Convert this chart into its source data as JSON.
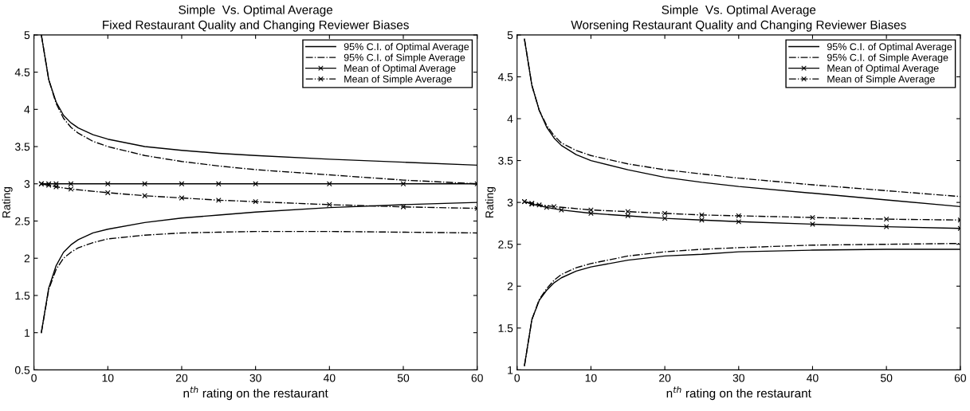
{
  "chart_data": [
    {
      "type": "line",
      "title": "Simple  Vs. Optimal Average",
      "subtitle": "Fixed Restaurant Quality and Changing Reviewer Biases",
      "xlabel": "n$^{th}$ rating on the restaurant",
      "ylabel": "Rating",
      "xlim": [
        0,
        60
      ],
      "xticks": [
        0,
        10,
        20,
        30,
        40,
        50,
        60
      ],
      "ylim": [
        0.5,
        5
      ],
      "yticks": [
        0.5,
        1,
        1.5,
        2,
        2.5,
        3,
        3.5,
        4,
        4.5,
        5
      ],
      "grid": false,
      "legend": "top right",
      "series": [
        {
          "name": "95% C.I. of Optimal Average",
          "color": "#000000",
          "line_style": "solid",
          "marker": "none",
          "x": [
            1,
            2,
            3,
            4,
            5,
            6,
            8,
            10,
            15,
            20,
            25,
            30,
            40,
            50,
            60
          ],
          "values": [
            5.0,
            4.4,
            4.1,
            3.92,
            3.82,
            3.75,
            3.66,
            3.6,
            3.5,
            3.45,
            3.41,
            3.38,
            3.33,
            3.29,
            3.25
          ]
        },
        {
          "name": "95% C.I. of Simple Average",
          "color": "#000000",
          "line_style": "dashdot",
          "marker": "none",
          "x": [
            1,
            2,
            3,
            4,
            5,
            6,
            8,
            10,
            15,
            20,
            25,
            30,
            40,
            50,
            60
          ],
          "values": [
            5.0,
            4.4,
            4.08,
            3.88,
            3.76,
            3.68,
            3.57,
            3.5,
            3.38,
            3.3,
            3.24,
            3.19,
            3.12,
            3.05,
            3.0
          ]
        },
        {
          "name": "Mean of Optimal Average",
          "color": "#000000",
          "line_style": "solid",
          "marker": "cross",
          "x": [
            1,
            2,
            3,
            5,
            10,
            15,
            20,
            25,
            30,
            40,
            50,
            60
          ],
          "values": [
            3.0,
            3.0,
            3.0,
            3.0,
            3.0,
            3.0,
            3.0,
            3.0,
            3.0,
            3.0,
            3.0,
            3.0
          ]
        },
        {
          "name": "Mean of Simple Average",
          "color": "#000000",
          "line_style": "dashdot",
          "marker": "cross",
          "x": [
            1,
            2,
            3,
            5,
            10,
            15,
            20,
            25,
            30,
            40,
            50,
            60
          ],
          "values": [
            3.0,
            2.98,
            2.96,
            2.93,
            2.88,
            2.84,
            2.81,
            2.78,
            2.76,
            2.72,
            2.69,
            2.67
          ]
        },
        {
          "color": "#000000",
          "line_style": "solid",
          "marker": "none",
          "x": [
            1,
            2,
            3,
            4,
            5,
            6,
            8,
            10,
            15,
            20,
            25,
            30,
            40,
            50,
            60
          ],
          "values": [
            1.0,
            1.6,
            1.9,
            2.08,
            2.18,
            2.25,
            2.34,
            2.39,
            2.48,
            2.54,
            2.58,
            2.62,
            2.68,
            2.72,
            2.75
          ]
        },
        {
          "color": "#000000",
          "line_style": "dashdot",
          "marker": "none",
          "x": [
            1,
            2,
            3,
            4,
            5,
            6,
            8,
            10,
            15,
            20,
            25,
            30,
            40,
            50,
            60
          ],
          "values": [
            1.0,
            1.58,
            1.85,
            2.0,
            2.08,
            2.14,
            2.21,
            2.26,
            2.31,
            2.34,
            2.35,
            2.36,
            2.36,
            2.35,
            2.34
          ]
        }
      ]
    },
    {
      "type": "line",
      "title": "Simple  Vs. Optimal Average",
      "subtitle": "Worsening Restaurant Quality and Changing Reviewer Biases",
      "xlabel": "n$^{th}$ rating on the restaurant",
      "ylabel": "Rating",
      "xlim": [
        0,
        60
      ],
      "xticks": [
        0,
        10,
        20,
        30,
        40,
        50,
        60
      ],
      "ylim": [
        1,
        5
      ],
      "yticks": [
        1,
        1.5,
        2,
        2.5,
        3,
        3.5,
        4,
        4.5,
        5
      ],
      "grid": false,
      "legend": "top right",
      "series": [
        {
          "name": "95% C.I. of Optimal Average",
          "color": "#000000",
          "line_style": "solid",
          "marker": "none",
          "x": [
            1,
            2,
            3,
            4,
            5,
            6,
            8,
            10,
            15,
            20,
            25,
            30,
            40,
            50,
            60
          ],
          "values": [
            4.95,
            4.4,
            4.1,
            3.9,
            3.77,
            3.68,
            3.57,
            3.5,
            3.39,
            3.3,
            3.24,
            3.19,
            3.11,
            3.03,
            2.95
          ]
        },
        {
          "name": "95% C.I. of Simple Average",
          "color": "#000000",
          "line_style": "dashdot",
          "marker": "none",
          "x": [
            1,
            2,
            3,
            4,
            5,
            6,
            8,
            10,
            15,
            20,
            25,
            30,
            40,
            50,
            60
          ],
          "values": [
            4.95,
            4.4,
            4.1,
            3.92,
            3.8,
            3.71,
            3.62,
            3.56,
            3.46,
            3.39,
            3.34,
            3.29,
            3.21,
            3.14,
            3.07
          ]
        },
        {
          "name": "Mean of Optimal Average",
          "color": "#000000",
          "line_style": "solid",
          "marker": "cross",
          "x": [
            1,
            2,
            4,
            6,
            10,
            15,
            20,
            25,
            30,
            40,
            50,
            60
          ],
          "values": [
            3.01,
            2.98,
            2.94,
            2.91,
            2.87,
            2.84,
            2.81,
            2.79,
            2.77,
            2.74,
            2.71,
            2.69
          ]
        },
        {
          "name": "Mean of Simple Average",
          "color": "#000000",
          "line_style": "dashdot",
          "marker": "cross",
          "x": [
            1,
            2,
            3,
            5,
            10,
            15,
            20,
            25,
            30,
            40,
            50,
            60
          ],
          "values": [
            3.01,
            2.99,
            2.97,
            2.95,
            2.91,
            2.89,
            2.87,
            2.85,
            2.84,
            2.82,
            2.8,
            2.79
          ]
        },
        {
          "color": "#000000",
          "line_style": "solid",
          "marker": "none",
          "x": [
            1,
            2,
            3,
            4,
            5,
            6,
            8,
            10,
            15,
            20,
            25,
            30,
            40,
            50,
            60
          ],
          "values": [
            1.05,
            1.6,
            1.83,
            1.95,
            2.04,
            2.1,
            2.18,
            2.23,
            2.31,
            2.36,
            2.38,
            2.41,
            2.43,
            2.44,
            2.44
          ]
        },
        {
          "color": "#000000",
          "line_style": "dashdot",
          "marker": "none",
          "x": [
            1,
            2,
            3,
            4,
            5,
            6,
            8,
            10,
            15,
            20,
            25,
            30,
            40,
            50,
            60
          ],
          "values": [
            1.05,
            1.6,
            1.84,
            1.97,
            2.07,
            2.14,
            2.22,
            2.27,
            2.36,
            2.41,
            2.44,
            2.46,
            2.49,
            2.5,
            2.51
          ]
        }
      ]
    }
  ]
}
